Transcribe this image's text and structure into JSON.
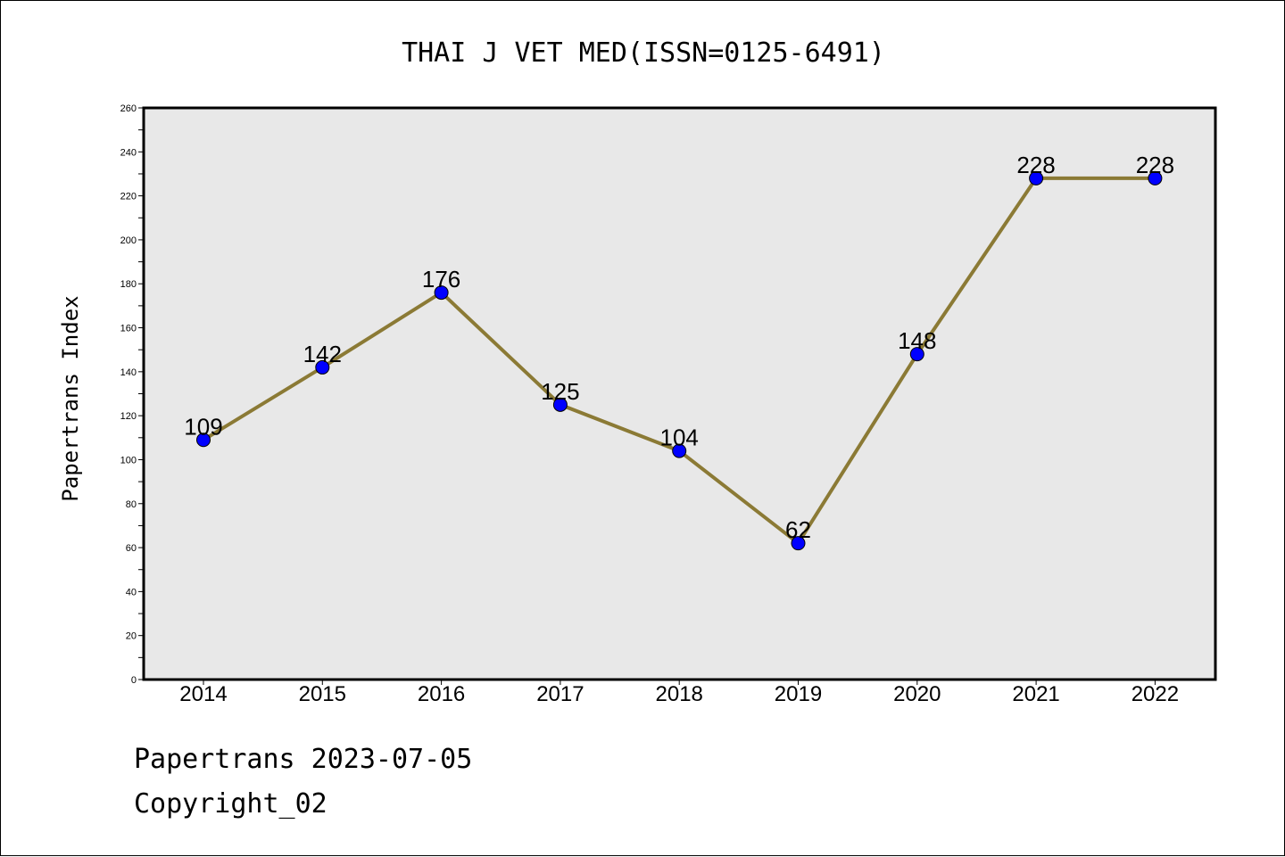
{
  "chart_data": {
    "type": "line",
    "title": "THAI J VET MED(ISSN=0125-6491)",
    "xlabel": "",
    "ylabel": "Papertrans Index",
    "x": [
      "2014",
      "2015",
      "2016",
      "2017",
      "2018",
      "2019",
      "2020",
      "2021",
      "2022"
    ],
    "series": [
      {
        "values": [
          109,
          142,
          176,
          125,
          104,
          62,
          148,
          228,
          228
        ]
      }
    ],
    "ylim": [
      0,
      260
    ],
    "yticks": [
      0,
      20,
      40,
      60,
      80,
      100,
      120,
      140,
      160,
      180,
      200,
      220,
      240,
      260
    ],
    "grid": false,
    "legend": "none",
    "data_labels": true
  },
  "footer": {
    "line1": "Papertrans 2023-07-05",
    "line2": "Copyright_02"
  },
  "colors": {
    "line": "#8b7a35",
    "marker": "#0000ff",
    "plot_background": "#e8e8e8",
    "axis": "#000000"
  }
}
